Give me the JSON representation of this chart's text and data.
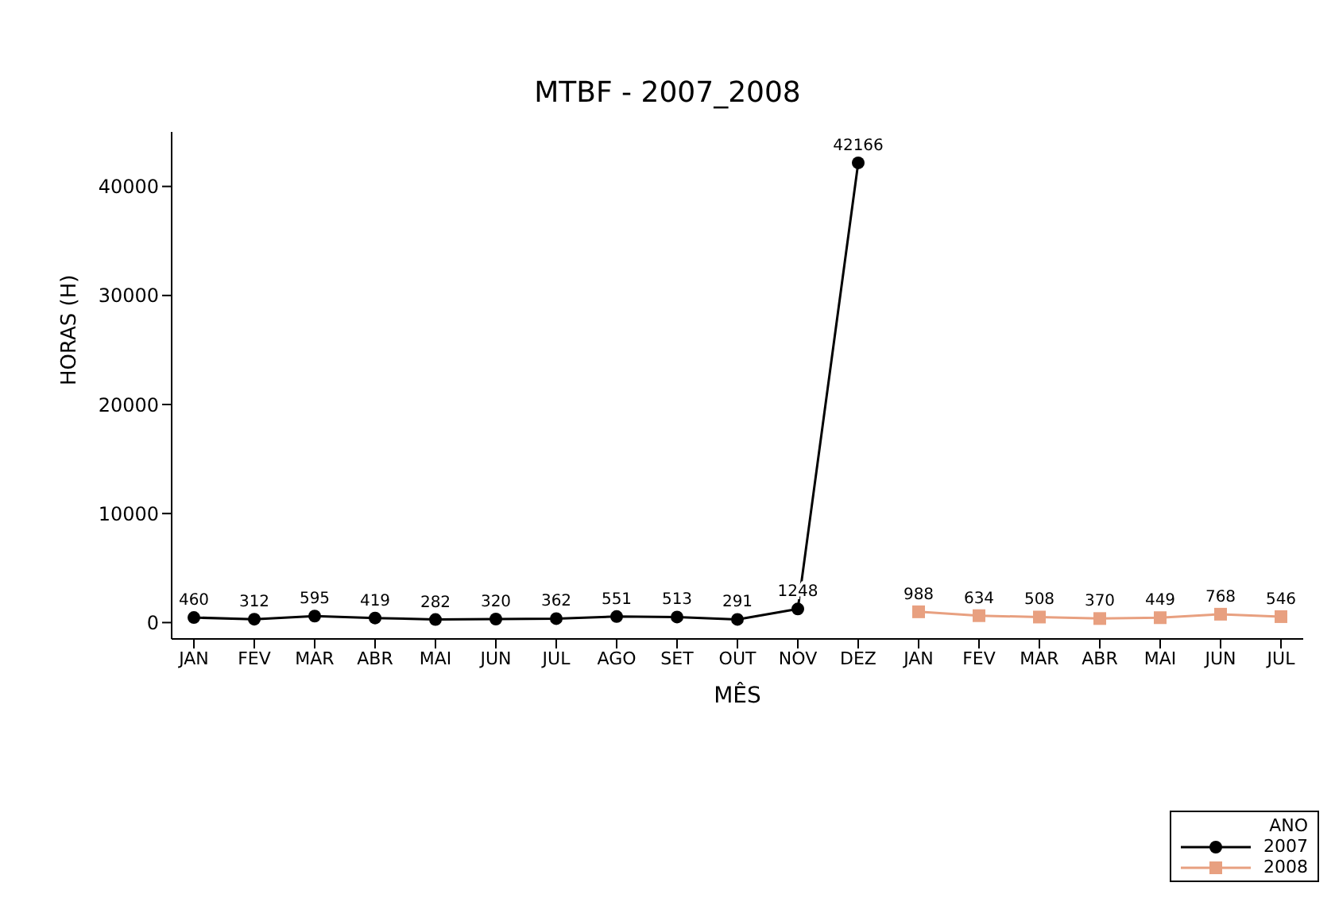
{
  "chart_data": {
    "type": "line",
    "title": "MTBF - 2007_2008",
    "xlabel": "MÊS",
    "ylabel": "HORAS (H)",
    "legend_title": "ANO",
    "categories": [
      "JAN",
      "FEV",
      "MAR",
      "ABR",
      "MAI",
      "JUN",
      "JUL",
      "AGO",
      "SET",
      "OUT",
      "NOV",
      "DEZ",
      "JAN",
      "FEV",
      "MAR",
      "ABR",
      "MAI",
      "JUN",
      "JUL"
    ],
    "series": [
      {
        "name": "2007",
        "color": "#000000",
        "marker": "circle",
        "values": [
          460,
          312,
          595,
          419,
          282,
          320,
          362,
          551,
          513,
          291,
          1248,
          42166,
          null,
          null,
          null,
          null,
          null,
          null,
          null
        ]
      },
      {
        "name": "2008",
        "color": "#e8a080",
        "marker": "square",
        "values": [
          null,
          null,
          null,
          null,
          null,
          null,
          null,
          null,
          null,
          null,
          null,
          null,
          988,
          634,
          508,
          370,
          449,
          768,
          546
        ]
      }
    ],
    "ylim": [
      -1500,
      45000
    ],
    "yticks": [
      0,
      10000,
      20000,
      30000,
      40000
    ],
    "grid": false,
    "legend": "bottom right",
    "data_labels": true
  }
}
